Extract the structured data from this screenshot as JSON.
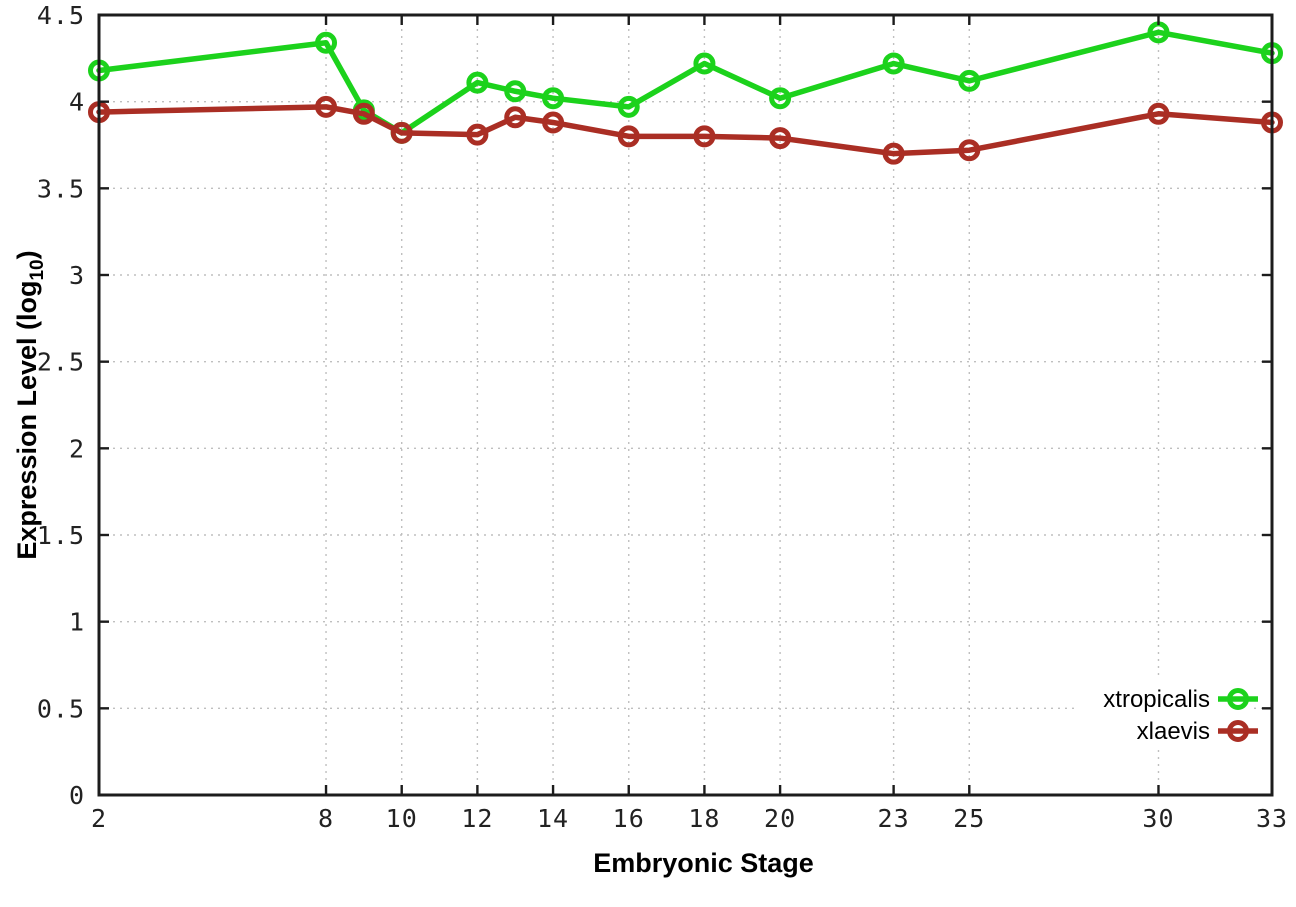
{
  "chart_data": {
    "type": "line",
    "title": "",
    "xlabel": "Embryonic Stage",
    "ylabel": "Expression Level (log10)",
    "ylabel_rich": [
      {
        "t": "Expression Level (log"
      },
      {
        "t": "10",
        "sub": true
      },
      {
        "t": ")"
      }
    ],
    "x": [
      2,
      8,
      9,
      10,
      12,
      13,
      14,
      16,
      18,
      20,
      23,
      25,
      30,
      33
    ],
    "series": [
      {
        "name": "xtropicalis",
        "color": "#1cd21c",
        "marker": "open-circle",
        "values": [
          4.18,
          4.34,
          3.95,
          3.82,
          4.11,
          4.06,
          4.02,
          3.97,
          4.22,
          4.02,
          4.22,
          4.12,
          4.4,
          4.28
        ]
      },
      {
        "name": "xlaevis",
        "color": "#aa2e24",
        "marker": "open-circle",
        "values": [
          3.94,
          3.97,
          3.93,
          3.82,
          3.81,
          3.91,
          3.88,
          3.8,
          3.8,
          3.79,
          3.7,
          3.72,
          3.93,
          3.88
        ]
      }
    ],
    "xlim": [
      2,
      33
    ],
    "ylim": [
      0,
      4.5
    ],
    "xticks": [
      2,
      8,
      10,
      12,
      14,
      16,
      18,
      20,
      23,
      25,
      30,
      33
    ],
    "yticks": [
      0,
      0.5,
      1,
      1.5,
      2,
      2.5,
      3,
      3.5,
      4,
      4.5
    ],
    "ytick_labels": [
      "0",
      "0.5",
      "1",
      "1.5",
      "2",
      "2.5",
      "3",
      "3.5",
      "4",
      "4.5"
    ],
    "grid": true,
    "legend_position": "bottom-right",
    "background_color": "#ffffff",
    "grid_color": "#bfbfbf",
    "border_color": "#1c1c1c"
  }
}
